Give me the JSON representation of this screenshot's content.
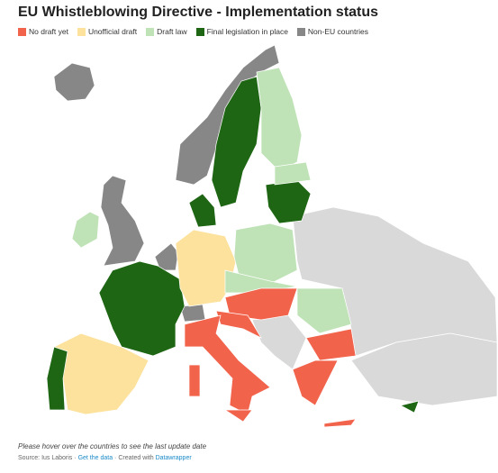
{
  "header": {
    "title": "EU Whistleblowing Directive - Implementation status"
  },
  "legend": {
    "items": [
      {
        "label": "No draft yet",
        "color": "#f2634c"
      },
      {
        "label": "Unofficial draft",
        "color": "#fde29e"
      },
      {
        "label": "Draft law",
        "color": "#bfe3b7"
      },
      {
        "label": "Final legislation in place",
        "color": "#1e6614"
      },
      {
        "label": "Non-EU countries",
        "color": "#878787"
      }
    ]
  },
  "footer": {
    "note": "Please hover over the countries to see the last update date",
    "source": "Source: Ius Laboris",
    "separator": "·",
    "data_link": "Get the data",
    "created": "Created with",
    "credit": "Datawrapper"
  }
}
